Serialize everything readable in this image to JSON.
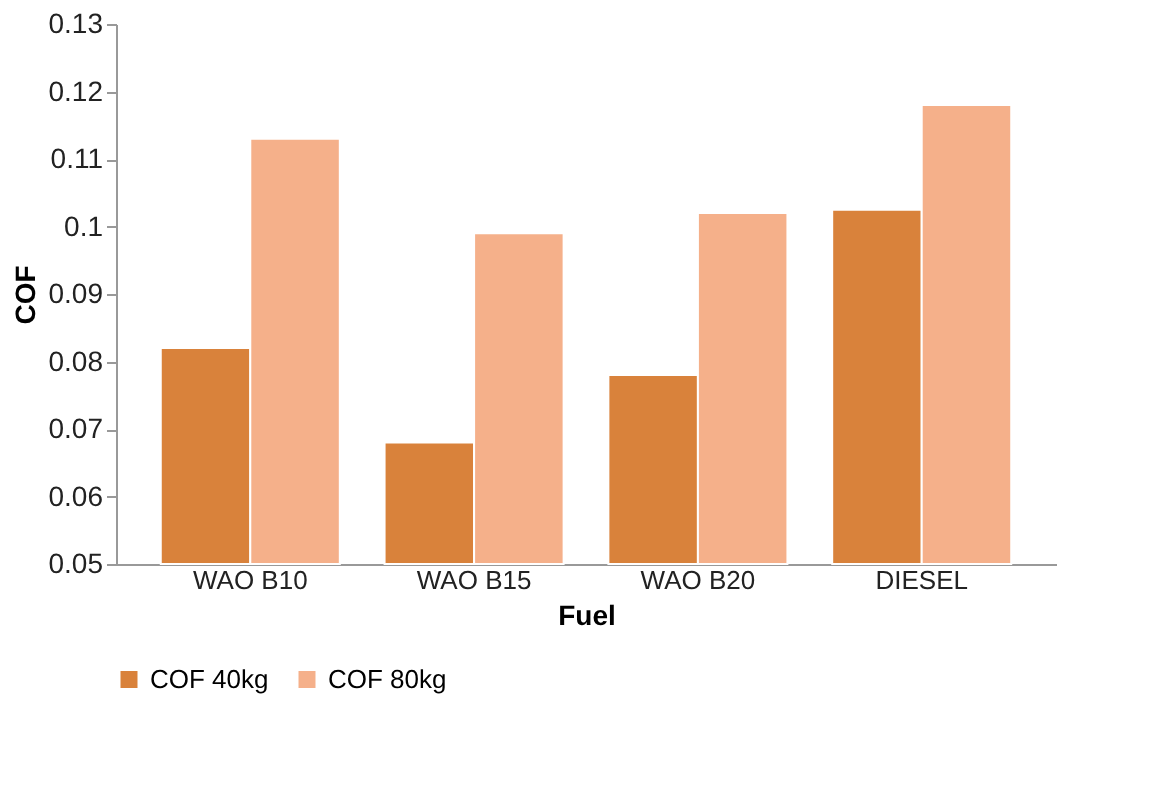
{
  "chart_data": {
    "type": "bar",
    "xlabel": "Fuel",
    "ylabel": "COF",
    "categories": [
      "WAO B10",
      "WAO B15",
      "WAO B20",
      "DIESEL"
    ],
    "series": [
      {
        "name": "COF 40kg",
        "color": "#d9823b",
        "values": [
          0.082,
          0.068,
          0.078,
          0.1025
        ]
      },
      {
        "name": "COF 80kg",
        "color": "#f5b08a",
        "values": [
          0.113,
          0.099,
          0.102,
          0.118
        ]
      }
    ],
    "ylim": [
      0.05,
      0.13
    ],
    "yticks": [
      0.05,
      0.06,
      0.07,
      0.08,
      0.09,
      {
        "value": 0.1,
        "label": "0.1"
      },
      0.11,
      0.12,
      0.13
    ],
    "grid": false,
    "legend": "bottom"
  }
}
